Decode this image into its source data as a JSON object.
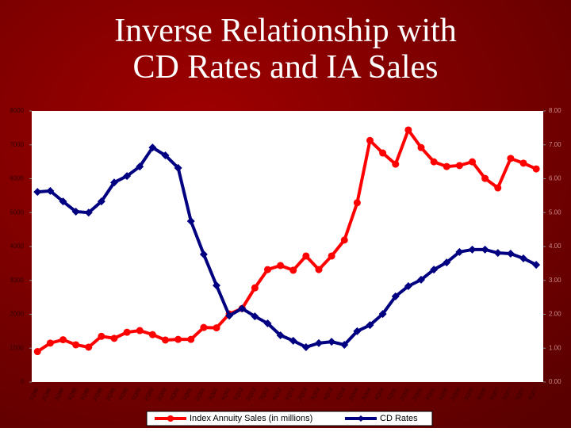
{
  "chart_data": {
    "type": "line",
    "title": "Inverse Relationship with CD Rates and IA Sales",
    "categories": [
      "1Q98",
      "2Q98",
      "3Q98",
      "4Q98",
      "1Q99",
      "2Q99",
      "3Q99",
      "4Q99",
      "1Q00",
      "2Q00",
      "3Q00",
      "4Q00",
      "1Q01",
      "2Q01",
      "3Q01",
      "4Q01",
      "1Q02",
      "2Q02",
      "3Q02",
      "4Q02",
      "1Q03",
      "2Q03",
      "3Q03",
      "4Q03",
      "1Q04",
      "2Q04",
      "3Q04",
      "4Q04",
      "1Q05",
      "2Q05",
      "3Q05",
      "4Q05",
      "1Q06",
      "2Q06",
      "3Q06",
      "4Q06",
      "1Q07",
      "2Q07",
      "3Q07",
      "4Q07"
    ],
    "series": [
      {
        "name": "Index Annuity Sales (in millions)",
        "color": "#ff0000",
        "values": [
          900,
          1150,
          1250,
          1100,
          1030,
          1350,
          1290,
          1470,
          1520,
          1400,
          1240,
          1260,
          1260,
          1610,
          1600,
          2010,
          2170,
          2780,
          3320,
          3440,
          3300,
          3720,
          3320,
          3720,
          4190,
          5290,
          7130,
          6760,
          6430,
          7440,
          6920,
          6500,
          6360,
          6390,
          6500,
          6010,
          5730,
          6600,
          6460,
          6290
        ]
      },
      {
        "name": "CD Rates",
        "color": "#000080",
        "axis": "y2",
        "values": [
          5.61,
          5.64,
          5.33,
          5.03,
          5.0,
          5.33,
          5.89,
          6.08,
          6.36,
          6.92,
          6.69,
          6.32,
          4.75,
          3.77,
          2.85,
          1.96,
          2.17,
          1.94,
          1.73,
          1.38,
          1.22,
          1.03,
          1.15,
          1.19,
          1.1,
          1.5,
          1.68,
          2.01,
          2.53,
          2.83,
          3.02,
          3.32,
          3.53,
          3.84,
          3.91,
          3.91,
          3.81,
          3.79,
          3.65,
          3.46
        ]
      }
    ],
    "ylim": [
      0,
      8000
    ],
    "yticks": [
      0,
      1000,
      2000,
      3000,
      4000,
      5000,
      6000,
      7000,
      8000
    ],
    "y2lim": [
      0,
      8
    ],
    "y2ticks": [
      {
        "value": 0,
        "label": "0.00"
      },
      {
        "value": 1,
        "label": "1.00"
      },
      {
        "value": 2,
        "label": "2.00"
      },
      {
        "value": 3,
        "label": "3.00"
      },
      {
        "value": 4,
        "label": "4.00"
      },
      {
        "value": 5,
        "label": "5.00"
      },
      {
        "value": 6,
        "label": "6.00"
      },
      {
        "value": 7,
        "label": "7.00"
      },
      {
        "value": 8,
        "label": "8.00"
      }
    ],
    "legend": "bottom"
  }
}
